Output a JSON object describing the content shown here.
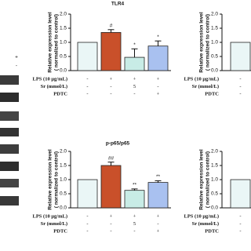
{
  "blot": {
    "lane_marks": [
      "+",
      "-"
    ]
  },
  "chart_data": [
    {
      "type": "bar",
      "title": "TLR4",
      "ylabel_lines": [
        "Relative expression level",
        "( normalized to control)"
      ],
      "categories": [
        null,
        null,
        null,
        null
      ],
      "values": [
        1.0,
        1.35,
        0.47,
        0.87
      ],
      "errors": [
        0,
        0.1,
        0.3,
        0.18
      ],
      "annotations": [
        null,
        "#",
        "*",
        "*"
      ],
      "colors": [
        "#eaf6f6",
        "#c9502a",
        "#c8ece6",
        "#a9c1f0"
      ],
      "ylim": [
        0,
        2
      ],
      "yticks": [
        {
          "value": 0,
          "label": "0.0"
        },
        0.5,
        {
          "value": 1,
          "label": "1.0"
        },
        1.5,
        {
          "value": 2,
          "label": "2.0"
        }
      ],
      "conditions": [
        {
          "label": "LPS (10 μg/mL)",
          "values": [
            "-",
            "+",
            "+",
            "+"
          ]
        },
        {
          "label": "Sr (mmol/L)",
          "values": [
            "-",
            "-",
            "5",
            "-"
          ]
        },
        {
          "label": "PDTC",
          "values": [
            "-",
            "-",
            "-",
            "+"
          ]
        }
      ]
    },
    {
      "type": "bar",
      "ylabel_lines": [
        "Relative expression level",
        "( normalized to control)"
      ],
      "categories": [
        null
      ],
      "values": [
        1.0
      ],
      "errors": [
        0
      ],
      "annotations": [
        null
      ],
      "colors": [
        "#eaf6f6"
      ],
      "ylim": [
        0,
        2
      ],
      "yticks": [
        {
          "value": 0,
          "label": "0.0"
        },
        0.5,
        {
          "value": 1,
          "label": "1.0"
        },
        1.5,
        {
          "value": 2,
          "label": "2.0"
        }
      ],
      "conditions": [
        {
          "label": "LPS (10 μg/mL)",
          "values": [
            "-"
          ]
        },
        {
          "label": "Sr (mmol/L)",
          "values": [
            "-"
          ]
        },
        {
          "label": "PDTC",
          "values": [
            "-"
          ]
        }
      ]
    },
    {
      "type": "bar",
      "title": "p-p65/p65",
      "ylabel_lines": [
        "Relative expression level",
        "( normalized to control)"
      ],
      "categories": [
        null,
        null,
        null,
        null
      ],
      "values": [
        1.0,
        1.5,
        0.62,
        0.9
      ],
      "errors": [
        0,
        0.12,
        0.05,
        0.06
      ],
      "annotations": [
        null,
        "##",
        "**",
        "**"
      ],
      "colors": [
        "#eaf6f6",
        "#c9502a",
        "#c8ece6",
        "#a9c1f0"
      ],
      "ylim": [
        0,
        2
      ],
      "yticks": [
        {
          "value": 0,
          "label": "0.0"
        },
        0.5,
        {
          "value": 1,
          "label": "1.0"
        },
        1.5,
        {
          "value": 2,
          "label": "2.0"
        }
      ],
      "conditions": [
        {
          "label": "LPS (10 μg/mL)",
          "values": [
            "-",
            "+",
            "+",
            "+"
          ]
        },
        {
          "label": "Sr (mmol/L)",
          "values": [
            "-",
            "-",
            "5",
            "-"
          ]
        },
        {
          "label": "PDTC",
          "values": [
            "-",
            "-",
            "-",
            "+"
          ]
        }
      ]
    },
    {
      "type": "bar",
      "ylabel_lines": [
        "Relative expression level",
        "( normalized to control)"
      ],
      "categories": [
        null
      ],
      "values": [
        1.0
      ],
      "errors": [
        0
      ],
      "annotations": [
        null
      ],
      "colors": [
        "#eaf6f6"
      ],
      "ylim": [
        0,
        2
      ],
      "yticks": [
        {
          "value": 0,
          "label": "0.0"
        },
        0.5,
        {
          "value": 1,
          "label": "1.0"
        },
        1.5,
        {
          "value": 2,
          "label": "2.0"
        }
      ],
      "conditions": [
        {
          "label": "LPS (10 μg/mL)",
          "values": [
            "-"
          ]
        },
        {
          "label": "Sr (mmol/L)",
          "values": [
            "-"
          ]
        },
        {
          "label": "PDTC",
          "values": [
            "-"
          ]
        }
      ]
    }
  ]
}
